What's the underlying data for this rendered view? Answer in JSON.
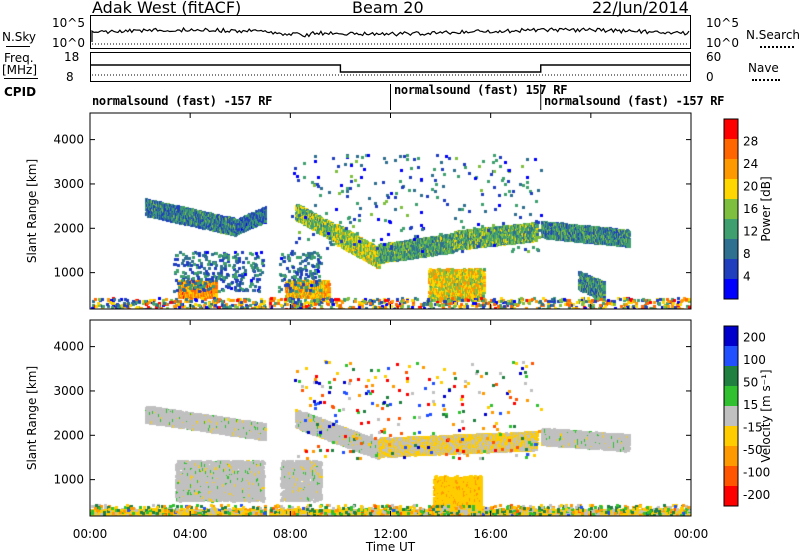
{
  "header": {
    "station": "Adak West (fitACF)",
    "beam": "Beam 20",
    "date": "22/Jun/2014"
  },
  "left_labels": {
    "nsky": "N.Sky",
    "freq": "Freq.",
    "freq_unit": "[MHz]",
    "cpid": "CPID"
  },
  "right_labels": {
    "nsearch": "N.Search",
    "nave": "Nave"
  },
  "noise_panel": {
    "left_ticks": [
      "10^5",
      "10^0"
    ],
    "right_ticks": [
      "10^5",
      "10^0"
    ]
  },
  "freq_panel": {
    "left_ticks": [
      "18",
      "8"
    ],
    "right_ticks": [
      "60",
      "0"
    ]
  },
  "cpid_modes": [
    {
      "label": "normalsound (fast) -157 RF",
      "start_hour": 0.0
    },
    {
      "label": "normalsound (fast) 157 RF",
      "start_hour": 12.0
    },
    {
      "label": "normalsound (fast) -157 RF",
      "start_hour": 18.0
    }
  ],
  "colors": {
    "power_scale": [
      "#0000ff",
      "#1f3fbf",
      "#2f6f8f",
      "#3f9f6f",
      "#7fbf3f",
      "#ffd700",
      "#ff9900",
      "#ff6600",
      "#ff0000"
    ],
    "velocity_scale": [
      "#0000cc",
      "#2050ff",
      "#208040",
      "#30c030",
      "#c0c0c0",
      "#ffcc00",
      "#ff9900",
      "#ff5500",
      "#ff0000"
    ]
  },
  "chart_data": [
    {
      "type": "heatmap",
      "name": "power",
      "xlabel": "",
      "ylabel": "Slant Range [km]",
      "xlim": [
        0,
        24
      ],
      "ylim": [
        180,
        4600
      ],
      "yticks": [
        1000,
        2000,
        3000,
        4000
      ],
      "colorbar": {
        "label": "Power [dB]",
        "ticks": [
          "4",
          "8",
          "12",
          "16",
          "20",
          "24",
          "28"
        ],
        "range": [
          0,
          30
        ]
      },
      "features": [
        {
          "t0": 2.2,
          "t1": 5.8,
          "r_start": 2500,
          "r_end": 2050,
          "width": 180,
          "mean": 9
        },
        {
          "t0": 5.8,
          "t1": 7.0,
          "r_start": 2050,
          "r_end": 2350,
          "width": 160,
          "mean": 8
        },
        {
          "t0": 8.2,
          "t1": 9.8,
          "r_start": 2400,
          "r_end": 1900,
          "width": 180,
          "mean": 14
        },
        {
          "t0": 9.8,
          "t1": 11.5,
          "r_start": 1900,
          "r_end": 1350,
          "width": 220,
          "mean": 16
        },
        {
          "t0": 11.5,
          "t1": 14.5,
          "r_start": 1450,
          "r_end": 1700,
          "width": 200,
          "mean": 12
        },
        {
          "t0": 14.5,
          "t1": 17.8,
          "r_start": 1750,
          "r_end": 1950,
          "width": 200,
          "mean": 13
        },
        {
          "t0": 18.0,
          "t1": 21.5,
          "r_start": 2000,
          "r_end": 1800,
          "width": 180,
          "mean": 10
        },
        {
          "t0": 13.5,
          "t1": 15.7,
          "r_start": 750,
          "r_end": 750,
          "width": 350,
          "mean": 18
        },
        {
          "t0": 3.5,
          "t1": 5.0,
          "r_start": 650,
          "r_end": 650,
          "width": 180,
          "mean": 22
        },
        {
          "t0": 7.8,
          "t1": 9.5,
          "r_start": 650,
          "r_end": 650,
          "width": 180,
          "mean": 20
        },
        {
          "t0": 19.5,
          "t1": 20.5,
          "r_start": 850,
          "r_end": 600,
          "width": 200,
          "mean": 10
        }
      ],
      "blocks": [
        {
          "t0": 3.3,
          "t1": 6.9,
          "r0": 600,
          "r1": 1500,
          "mean": 8,
          "density": 0.55
        },
        {
          "t0": 7.5,
          "t1": 9.2,
          "r0": 600,
          "r1": 1500,
          "mean": 8,
          "density": 0.55
        }
      ]
    },
    {
      "type": "heatmap",
      "name": "velocity",
      "xlabel": "Time UT",
      "ylabel": "Slant Range [km]",
      "xlim": [
        0,
        24
      ],
      "ylim": [
        180,
        4600
      ],
      "xticks": [
        "00:00",
        "04:00",
        "08:00",
        "12:00",
        "16:00",
        "20:00",
        "00:00"
      ],
      "yticks": [
        1000,
        2000,
        3000,
        4000
      ],
      "colorbar": {
        "label": "Velocity [m s⁻¹]",
        "ticks": [
          "200",
          "100",
          "50",
          "15",
          "-15",
          "-50",
          "-100",
          "-200"
        ],
        "range": [
          -250,
          250
        ]
      },
      "features": [
        {
          "t0": 2.2,
          "t1": 7.0,
          "r_start": 2500,
          "r_end": 2100,
          "width": 180,
          "mean": 0
        },
        {
          "t0": 8.2,
          "t1": 11.5,
          "r_start": 2400,
          "r_end": 1700,
          "width": 200,
          "mean": 0
        },
        {
          "t0": 11.5,
          "t1": 17.8,
          "r_start": 1750,
          "r_end": 1900,
          "width": 200,
          "mean": -30
        },
        {
          "t0": 18.0,
          "t1": 21.5,
          "r_start": 2000,
          "r_end": 1850,
          "width": 180,
          "mean": 0
        },
        {
          "t0": 13.7,
          "t1": 15.6,
          "r_start": 750,
          "r_end": 750,
          "width": 350,
          "mean": -60
        },
        {
          "t0": 3.4,
          "t1": 6.9,
          "r_start": 1000,
          "r_end": 1000,
          "width": 450,
          "mean": 0
        },
        {
          "t0": 7.6,
          "t1": 9.2,
          "r_start": 1000,
          "r_end": 1000,
          "width": 450,
          "mean": 0
        },
        {
          "t0": 0.0,
          "t1": 24.0,
          "r_start": 260,
          "r_end": 260,
          "width": 90,
          "mean": -40
        }
      ]
    }
  ]
}
